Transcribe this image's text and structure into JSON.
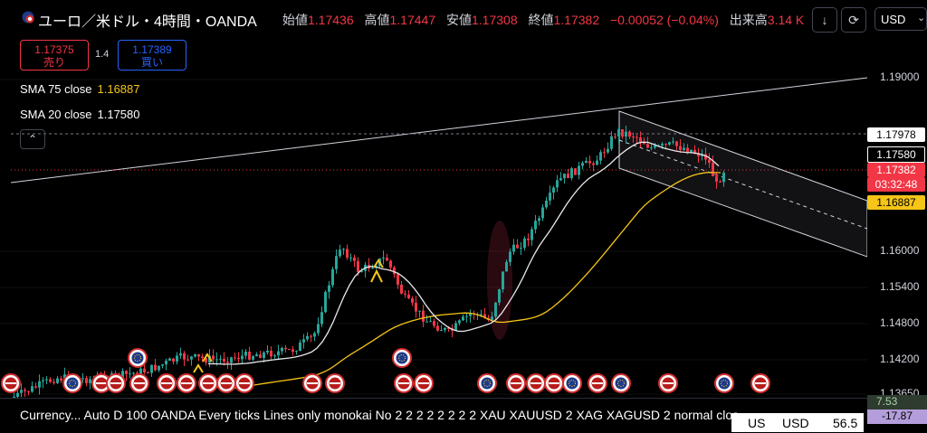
{
  "header": {
    "title": "ユーロ／米ドル・4時間・OANDA",
    "ohlc": [
      {
        "label": "始値",
        "value": "1.17436"
      },
      {
        "label": "高値",
        "value": "1.17447"
      },
      {
        "label": "安値",
        "value": "1.17308"
      },
      {
        "label": "終値",
        "value": "1.17382"
      }
    ],
    "change": "−0.00052 (−0.04%)",
    "volume_label": "出来高",
    "volume_value": "3.14 K",
    "currency": "USD",
    "icon_download": "arrow-down-icon",
    "icon_replay": "replay-icon"
  },
  "trade": {
    "sell_price": "1.17375",
    "sell_label": "売り",
    "spread": "1.4",
    "buy_price": "1.17389",
    "buy_label": "買い"
  },
  "indicators": [
    {
      "name": "SMA 75 close",
      "value": "1.16887",
      "color": "#f5c518"
    },
    {
      "name": "SMA 20 close",
      "value": "1.17580",
      "color": "#ffffff"
    }
  ],
  "price_axis": {
    "ticks": [
      "1.19000",
      "1.16000",
      "1.15400",
      "1.14800",
      "1.14200",
      "1.13650"
    ],
    "labels": {
      "high": "1.17978",
      "sma20": "1.17580",
      "last": "1.17382",
      "countdown": "03:32:48",
      "sma75": "1.16887"
    }
  },
  "bottom": {
    "status_text": "Currency... Auto D 100 OANDA Every ticks Lines only monokai No 2 2 2 2 2 2 2 2 XAU XAUUSD 2 XAG XAGUSD 2 normal clos",
    "usd_a": "US",
    "usd_b": "USD",
    "usd_val": "56.5",
    "right_val1": "7.53",
    "right_val2": "-17.87"
  },
  "colors": {
    "up": "#26a69a",
    "down": "#f23645",
    "sma75": "#f5c518",
    "sma20": "#ffffff"
  }
}
